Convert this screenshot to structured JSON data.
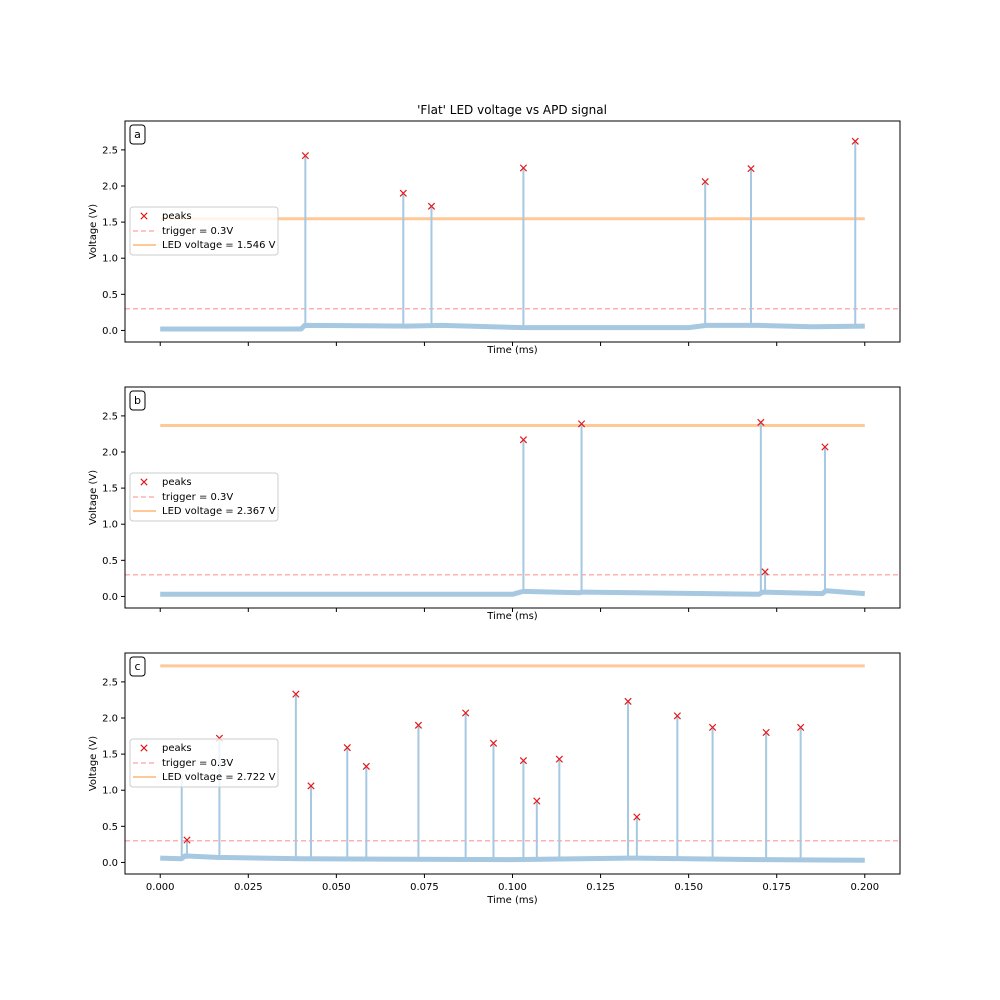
{
  "figure_title": "'Flat' LED voltage vs APD signal",
  "colors": {
    "signal": "#a6c8e0",
    "led": "#ffc896",
    "trigger": "#ffb0b0",
    "peak_marker": "#e41a1c",
    "axes": "#000000"
  },
  "chart_data": [
    {
      "type": "line",
      "panel_label": "a",
      "xlabel": "Time (ms)",
      "ylabel": "Voltage (V)",
      "xlim": [
        -0.01,
        0.21
      ],
      "ylim": [
        -0.16,
        2.9
      ],
      "x_ticks": [
        0.0,
        0.025,
        0.05,
        0.075,
        0.1,
        0.125,
        0.15,
        0.175,
        0.2
      ],
      "x_tick_labels": [],
      "y_ticks": [
        0.0,
        0.5,
        1.0,
        1.5,
        2.0,
        2.5
      ],
      "y_tick_labels": [
        "0.0",
        "0.5",
        "1.0",
        "1.5",
        "2.0",
        "2.5"
      ],
      "grid": false,
      "legend_position": "center-left",
      "legend": [
        "peaks",
        "trigger = 0.3V",
        "LED voltage = 1.546 V"
      ],
      "led_voltage": 1.546,
      "trigger": 0.3,
      "baseline": [
        [
          0.0,
          0.02
        ],
        [
          0.04,
          0.02
        ],
        [
          0.041,
          0.07
        ],
        [
          0.07,
          0.06
        ],
        [
          0.08,
          0.07
        ],
        [
          0.103,
          0.04
        ],
        [
          0.15,
          0.04
        ],
        [
          0.155,
          0.07
        ],
        [
          0.17,
          0.07
        ],
        [
          0.185,
          0.05
        ],
        [
          0.2,
          0.06
        ]
      ],
      "peaks": [
        {
          "x": 0.0412,
          "y": 2.42
        },
        {
          "x": 0.069,
          "y": 1.9
        },
        {
          "x": 0.077,
          "y": 1.72
        },
        {
          "x": 0.1031,
          "y": 2.25
        },
        {
          "x": 0.1547,
          "y": 2.06
        },
        {
          "x": 0.1677,
          "y": 2.24
        },
        {
          "x": 0.1973,
          "y": 2.62
        }
      ]
    },
    {
      "type": "line",
      "panel_label": "b",
      "xlabel": "Time (ms)",
      "ylabel": "Voltage (V)",
      "xlim": [
        -0.01,
        0.21
      ],
      "ylim": [
        -0.16,
        2.9
      ],
      "x_ticks": [
        0.0,
        0.025,
        0.05,
        0.075,
        0.1,
        0.125,
        0.15,
        0.175,
        0.2
      ],
      "x_tick_labels": [],
      "y_ticks": [
        0.0,
        0.5,
        1.0,
        1.5,
        2.0,
        2.5
      ],
      "y_tick_labels": [
        "0.0",
        "0.5",
        "1.0",
        "1.5",
        "2.0",
        "2.5"
      ],
      "grid": false,
      "legend_position": "center-left",
      "legend": [
        "peaks",
        "trigger = 0.3V",
        "LED voltage = 2.367 V"
      ],
      "led_voltage": 2.367,
      "trigger": 0.3,
      "baseline": [
        [
          0.0,
          0.03
        ],
        [
          0.1,
          0.03
        ],
        [
          0.103,
          0.07
        ],
        [
          0.119,
          0.05
        ],
        [
          0.12,
          0.06
        ],
        [
          0.17,
          0.03
        ],
        [
          0.171,
          0.06
        ],
        [
          0.188,
          0.04
        ],
        [
          0.189,
          0.08
        ],
        [
          0.2,
          0.04
        ]
      ],
      "peaks": [
        {
          "x": 0.1031,
          "y": 2.17
        },
        {
          "x": 0.1196,
          "y": 2.39
        },
        {
          "x": 0.1705,
          "y": 2.41
        },
        {
          "x": 0.1717,
          "y": 0.34
        },
        {
          "x": 0.1887,
          "y": 2.07
        }
      ]
    },
    {
      "type": "line",
      "panel_label": "c",
      "xlabel": "Time (ms)",
      "ylabel": "Voltage (V)",
      "xlim": [
        -0.01,
        0.21
      ],
      "ylim": [
        -0.16,
        2.9
      ],
      "x_ticks": [
        0.0,
        0.025,
        0.05,
        0.075,
        0.1,
        0.125,
        0.15,
        0.175,
        0.2
      ],
      "x_tick_labels": [
        "0.000",
        "0.025",
        "0.050",
        "0.075",
        "0.100",
        "0.125",
        "0.150",
        "0.175",
        "0.200"
      ],
      "y_ticks": [
        0.0,
        0.5,
        1.0,
        1.5,
        2.0,
        2.5
      ],
      "y_tick_labels": [
        "0.0",
        "0.5",
        "1.0",
        "1.5",
        "2.0",
        "2.5"
      ],
      "grid": false,
      "legend_position": "center-left",
      "legend": [
        "peaks",
        "trigger = 0.3V",
        "LED voltage = 2.722 V"
      ],
      "led_voltage": 2.722,
      "trigger": 0.3,
      "baseline": [
        [
          0.0,
          0.06
        ],
        [
          0.006,
          0.05
        ],
        [
          0.007,
          0.09
        ],
        [
          0.016,
          0.07
        ],
        [
          0.04,
          0.05
        ],
        [
          0.1,
          0.04
        ],
        [
          0.133,
          0.06
        ],
        [
          0.17,
          0.04
        ],
        [
          0.2,
          0.03
        ]
      ],
      "unmarked_spikes": [
        {
          "x": 0.0061,
          "y": 1.2
        }
      ],
      "peaks": [
        {
          "x": 0.0076,
          "y": 0.31
        },
        {
          "x": 0.0168,
          "y": 1.72
        },
        {
          "x": 0.0385,
          "y": 2.33
        },
        {
          "x": 0.0428,
          "y": 1.06
        },
        {
          "x": 0.0531,
          "y": 1.59
        },
        {
          "x": 0.0585,
          "y": 1.33
        },
        {
          "x": 0.0733,
          "y": 1.9
        },
        {
          "x": 0.0867,
          "y": 2.07
        },
        {
          "x": 0.0946,
          "y": 1.65
        },
        {
          "x": 0.1031,
          "y": 1.41
        },
        {
          "x": 0.1069,
          "y": 0.85
        },
        {
          "x": 0.1133,
          "y": 1.43
        },
        {
          "x": 0.1328,
          "y": 2.23
        },
        {
          "x": 0.1353,
          "y": 0.63
        },
        {
          "x": 0.1468,
          "y": 2.03
        },
        {
          "x": 0.1568,
          "y": 1.87
        },
        {
          "x": 0.172,
          "y": 1.8
        },
        {
          "x": 0.1818,
          "y": 1.87
        }
      ]
    }
  ]
}
